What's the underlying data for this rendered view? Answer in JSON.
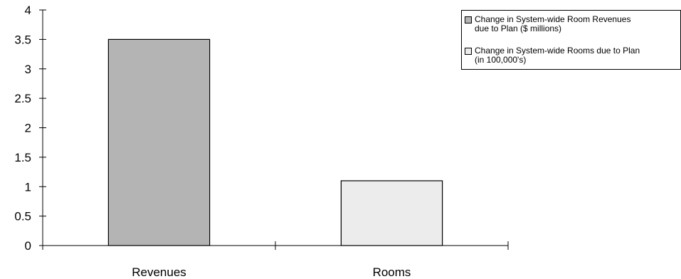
{
  "chart_data": {
    "type": "bar",
    "categories": [
      "Revenues",
      "Rooms"
    ],
    "series": [
      {
        "name": "Change in System-wide Room Revenues due to Plan ($ millions)",
        "values": [
          3.5,
          null
        ]
      },
      {
        "name": "Change in System-wide Rooms due to Plan (in 100,000's)",
        "values": [
          null,
          1.1
        ]
      }
    ],
    "values": [
      3.5,
      1.1
    ],
    "colors": [
      "#b4b4b4",
      "#ececec"
    ],
    "ylim": [
      0,
      4
    ],
    "yticks": [
      "0",
      "0.5",
      "1",
      "1.5",
      "2",
      "2.5",
      "3",
      "3.5",
      "4"
    ],
    "title": "",
    "xlabel": "",
    "ylabel": "",
    "grid": false,
    "legend_position": "top-right"
  },
  "legend": {
    "item1_line1": "Change in System-wide Room Revenues",
    "item1_line2": "due to Plan ($ millions)",
    "item2_line1": "Change in System-wide Rooms due to Plan",
    "item2_line2": "(in 100,000's)"
  }
}
